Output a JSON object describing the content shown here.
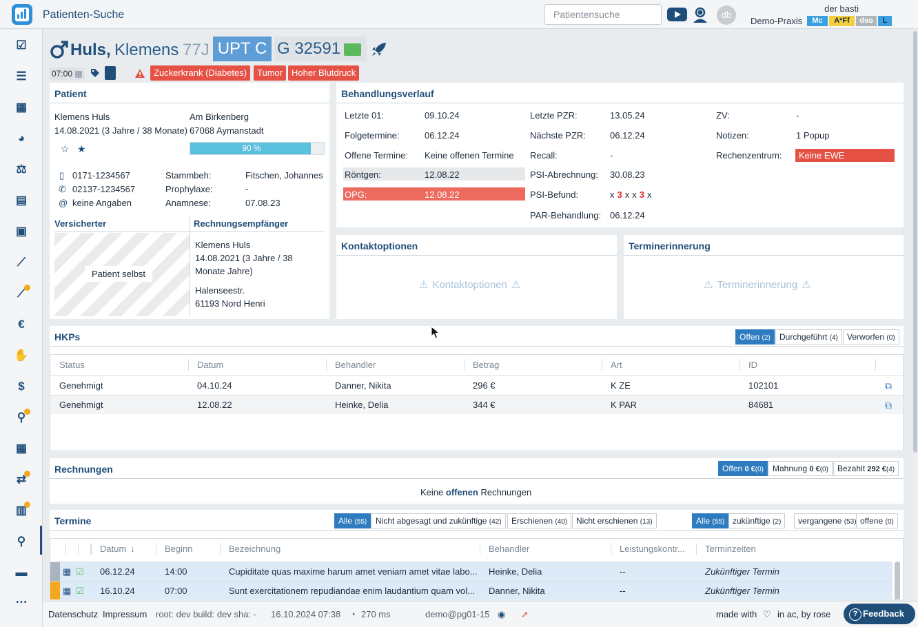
{
  "app": {
    "title": "Patienten-Suche",
    "search_placeholder": "Patientensuche",
    "avatar_initials": "db",
    "user_name": "der basti",
    "practice_name": "Demo-Praxis",
    "practice_badges": [
      {
        "label": "Mc",
        "bg": "#3aa0e2",
        "fg": "#ffffff"
      },
      {
        "label": "A*Ff",
        "bg": "#f4d03f",
        "fg": "#1d2b3a"
      },
      {
        "label": "dso",
        "bg": "#b0b5ba",
        "fg": "#ffffff"
      },
      {
        "label": "L",
        "bg": "#3aa0e2",
        "fg": "#1d2b3a"
      }
    ]
  },
  "sidebar": {
    "items": [
      "checkbox-icon",
      "list-icon",
      "table-icon",
      "pie-chart-icon",
      "scale-icon",
      "document-icon",
      "calendar-icon",
      "line-chart-icon",
      "chart-badge-icon",
      "euro-icon",
      "hand-money-icon",
      "invoice-icon",
      "search-badge-icon",
      "grid-icon",
      "transfer-icon",
      "building-icon",
      "search-icon",
      "card-icon",
      "more-icon"
    ]
  },
  "patient": {
    "last_name": "Huls,",
    "first_name": "Klemens",
    "age": "77J",
    "badge_uptc": "UPT C",
    "patient_number": "G 32591",
    "appointment_time": "07:00",
    "risks": [
      "Zuckerkrank (Diabetes)",
      "Tumor",
      "Hoher Blutdruck"
    ]
  },
  "patient_panel": {
    "title": "Patient",
    "name": "Klemens Huls",
    "birth": "14.08.2021 (3 Jahre / 38 Monate)",
    "street": "Am Birkenberg",
    "city": "67068 Aymanstadt",
    "progress_percent": 90,
    "progress_label": "90 %",
    "mobile": "0171-1234567",
    "phone": "02137-1234567",
    "email": "keine Angaben",
    "stammbeh_label": "Stammbeh:",
    "stammbeh_value": "Fitschen, Johannes",
    "prophylaxe_label": "Prophylaxe:",
    "prophylaxe_value": "-",
    "anamnese_label": "Anamnese:",
    "anamnese_value": "07.08.23",
    "insured_title": "Versicherter",
    "insured_value": "Patient selbst",
    "recipient_title": "Rechnungsempfänger",
    "recipient_name": "Klemens Huls",
    "recipient_birth_1": "14.08.2021 (3 Jahre / 38",
    "recipient_birth_2": "Monate Jahre)",
    "recipient_street": "Halenseestr.",
    "recipient_city": "61193 Nord Henri"
  },
  "treatment": {
    "title": "Behandlungsverlauf",
    "col1": [
      {
        "label": "Letzte 01:",
        "value": "09.10.24"
      },
      {
        "label": "Folgetermine:",
        "value": "06.12.24"
      },
      {
        "label": "Offene Termine:",
        "value": "Keine offenen Termine"
      },
      {
        "label": "Röntgen:",
        "value": "12.08.22"
      },
      {
        "label": "OPG:",
        "value": "12.08.22"
      }
    ],
    "col2": [
      {
        "label": "Letzte PZR:",
        "value": "13.05.24"
      },
      {
        "label": "Nächste PZR:",
        "value": "06.12.24"
      },
      {
        "label": "Recall:",
        "value": "-"
      },
      {
        "label": "PSI-Abrechnung:",
        "value": "30.08.23"
      },
      {
        "label": "PSI-Befund:",
        "value": ""
      },
      {
        "label": "PAR-Behandlung:",
        "value": "06.12.24"
      }
    ],
    "psi": [
      "x",
      "3",
      "x",
      "x",
      "3",
      "x"
    ],
    "col3": [
      {
        "label": "ZV:",
        "value": "-"
      },
      {
        "label": "Notizen:",
        "value": "1 Popup"
      },
      {
        "label": "Rechenzentrum:",
        "value": "Keine EWE"
      }
    ]
  },
  "contact": {
    "title": "Kontaktoptionen",
    "empty": "Kontaktoptionen"
  },
  "reminder": {
    "title": "Terminerinnerung",
    "empty": "Terminerinnerung"
  },
  "hkps": {
    "title": "HKPs",
    "filters": [
      {
        "label": "Offen",
        "count": "(2)"
      },
      {
        "label": "Durchgeführt",
        "count": "(4)"
      },
      {
        "label": "Verworfen",
        "count": "(0)"
      }
    ],
    "columns": [
      "Status",
      "Datum",
      "Behandler",
      "Betrag",
      "Art",
      "ID"
    ],
    "rows": [
      [
        "Genehmigt",
        "04.10.24",
        "Danner, Nikita",
        "296 €",
        "K ZE",
        "102101"
      ],
      [
        "Genehmigt",
        "12.08.22",
        "Heinke, Delia",
        "344 €",
        "K PAR",
        "84681"
      ]
    ]
  },
  "invoices": {
    "title": "Rechnungen",
    "empty_pre": "Keine",
    "empty_bold": "offenen",
    "empty_post": "Rechnungen",
    "filters": [
      {
        "label": "Offen",
        "amount": "0 €",
        "count": "(0)"
      },
      {
        "label": "Mahnung",
        "amount": "0 €",
        "count": "(0)"
      },
      {
        "label": "Bezahlt",
        "amount": "292 €",
        "count": "(4)"
      }
    ]
  },
  "appointments": {
    "title": "Termine",
    "filters_a": [
      {
        "label": "Alle",
        "count": "(55)"
      },
      {
        "label": "Nicht abgesagt und zukünftige",
        "count": "(42)"
      },
      {
        "label": "Erschienen",
        "count": "(40)"
      },
      {
        "label": "Nicht erschienen",
        "count": "(13)"
      }
    ],
    "filters_b": [
      {
        "label": "Alle",
        "count": "(55)"
      },
      {
        "label": "zukünftige",
        "count": "(2)"
      },
      {
        "label": "vergangene",
        "count": "(53)"
      },
      {
        "label": "offene",
        "count": "(0)"
      }
    ],
    "columns": [
      "Datum",
      "Beginn",
      "Bezeichnung",
      "Behandler",
      "Leistungskontr...",
      "Terminzeiten"
    ],
    "sort_indicator": "↓",
    "rows": [
      [
        "06.12.24",
        "14:00",
        "Cupiditate quas maxime harum amet veniam amet vitae labo...",
        "Heinke, Delia",
        "--",
        "Zukünftiger Termin"
      ],
      [
        "16.10.24",
        "07:00",
        "Sunt exercitationem repudiandae enim laudantium quam vol...",
        "Danner, Nikita",
        "--",
        "Zukünftiger Termin"
      ]
    ]
  },
  "footer": {
    "privacy": "Datenschutz",
    "imprint": "Impressum",
    "build": "root: dev build: dev sha: -",
    "datetime": "16.10.2024 07:38",
    "timing": "270 ms",
    "db": "demo@pg01-15",
    "made_with": "made with",
    "credit": "in ac, by rose",
    "feedback": "Feedback"
  }
}
